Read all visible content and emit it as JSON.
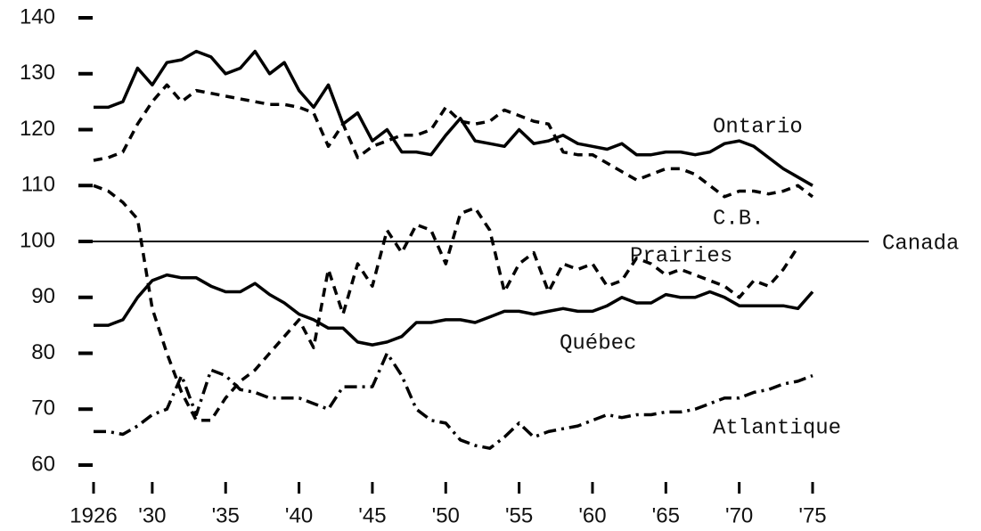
{
  "chart_data": {
    "type": "line",
    "x": [
      1926,
      1927,
      1928,
      1929,
      1930,
      1931,
      1932,
      1933,
      1934,
      1935,
      1936,
      1937,
      1938,
      1939,
      1940,
      1941,
      1942,
      1943,
      1944,
      1945,
      1946,
      1947,
      1948,
      1949,
      1950,
      1951,
      1952,
      1953,
      1954,
      1955,
      1956,
      1957,
      1958,
      1959,
      1960,
      1961,
      1962,
      1963,
      1964,
      1965,
      1966,
      1967,
      1968,
      1969,
      1970,
      1971,
      1972,
      1973,
      1974,
      1975
    ],
    "series": [
      {
        "name": "Ontario",
        "color": "#000000",
        "style": "solid",
        "values": [
          124,
          124,
          125,
          131,
          128,
          132,
          132.5,
          134,
          133,
          130,
          131,
          134,
          130,
          132,
          127,
          124,
          128,
          121,
          123,
          118,
          120,
          116,
          116,
          115.5,
          119,
          122,
          118,
          117.5,
          117,
          120,
          117.5,
          118,
          119,
          117.5,
          117,
          116.5,
          117.5,
          115.5,
          115.5,
          116,
          116,
          115.5,
          116,
          117.5,
          118,
          117,
          115,
          113,
          111.5,
          110
        ]
      },
      {
        "name": "C.B.",
        "color": "#000000",
        "style": "dashed",
        "values": [
          114.5,
          115,
          116,
          121,
          125,
          128,
          125,
          127,
          126.5,
          126,
          125.5,
          125,
          124.5,
          124.5,
          124,
          123,
          117,
          121,
          115,
          117,
          118,
          119,
          119,
          120,
          124,
          121.5,
          121,
          121.5,
          123.5,
          122.5,
          121.5,
          121,
          116,
          115.5,
          115.5,
          114,
          112.5,
          111,
          112,
          113,
          113,
          112,
          110,
          108,
          109,
          109,
          108.5,
          109,
          110,
          108
        ]
      },
      {
        "name": "Prairies",
        "color": "#000000",
        "style": "dashed",
        "values": [
          110,
          109,
          107,
          104,
          88,
          80,
          73,
          68,
          68,
          72,
          75,
          77,
          80,
          83,
          86,
          81,
          95,
          87,
          96,
          92,
          102,
          98,
          103,
          102,
          96,
          105,
          106,
          102,
          91,
          96,
          98,
          91,
          96,
          95,
          96,
          92,
          93,
          97,
          96,
          94,
          95,
          94,
          93,
          92,
          90,
          93,
          92,
          95,
          99,
          null
        ]
      },
      {
        "name": "Québec",
        "color": "#000000",
        "style": "solid",
        "values": [
          85,
          85,
          86,
          90,
          93,
          94,
          93.5,
          93.5,
          92,
          91,
          91,
          92.5,
          90.5,
          89,
          87,
          86,
          84.5,
          84.5,
          82,
          81.5,
          82,
          83,
          85.5,
          85.5,
          86,
          86,
          85.5,
          86.5,
          87.5,
          87.5,
          87,
          87.5,
          88,
          87.5,
          87.5,
          88.5,
          90,
          89,
          89,
          90.5,
          90,
          90,
          91,
          90,
          88.5,
          88.5,
          88.5,
          88.5,
          88,
          91
        ]
      },
      {
        "name": "Atlantique",
        "color": "#000000",
        "style": "dashdot",
        "values": [
          66,
          66,
          65.5,
          67,
          69,
          70,
          76,
          69,
          77,
          76,
          73.5,
          73,
          72,
          72,
          72,
          71,
          70,
          74,
          74,
          74,
          80,
          76,
          70,
          68,
          67.5,
          64.5,
          63.5,
          63,
          65,
          67.5,
          65,
          66,
          66.5,
          67,
          68,
          69,
          68.5,
          69,
          69,
          69.5,
          69.5,
          70,
          71,
          72,
          72,
          73,
          73.5,
          74.5,
          75,
          76
        ]
      }
    ],
    "reference": {
      "value": 100,
      "label": "Canada"
    },
    "xlim": [
      1926,
      1975
    ],
    "xticks": [
      1926,
      {
        "value": 1930,
        "label": "'30"
      },
      {
        "value": 1935,
        "label": "'35"
      },
      {
        "value": 1940,
        "label": "'40"
      },
      {
        "value": 1945,
        "label": "'45"
      },
      {
        "value": 1950,
        "label": "'50"
      },
      {
        "value": 1955,
        "label": "'55"
      },
      {
        "value": 1960,
        "label": "'60"
      },
      {
        "value": 1965,
        "label": "'65"
      },
      {
        "value": 1970,
        "label": "'70"
      },
      {
        "value": 1975,
        "label": "'75"
      }
    ],
    "ylim": [
      60,
      140
    ],
    "yticks": [
      60,
      70,
      80,
      90,
      100,
      110,
      120,
      130,
      140
    ]
  }
}
